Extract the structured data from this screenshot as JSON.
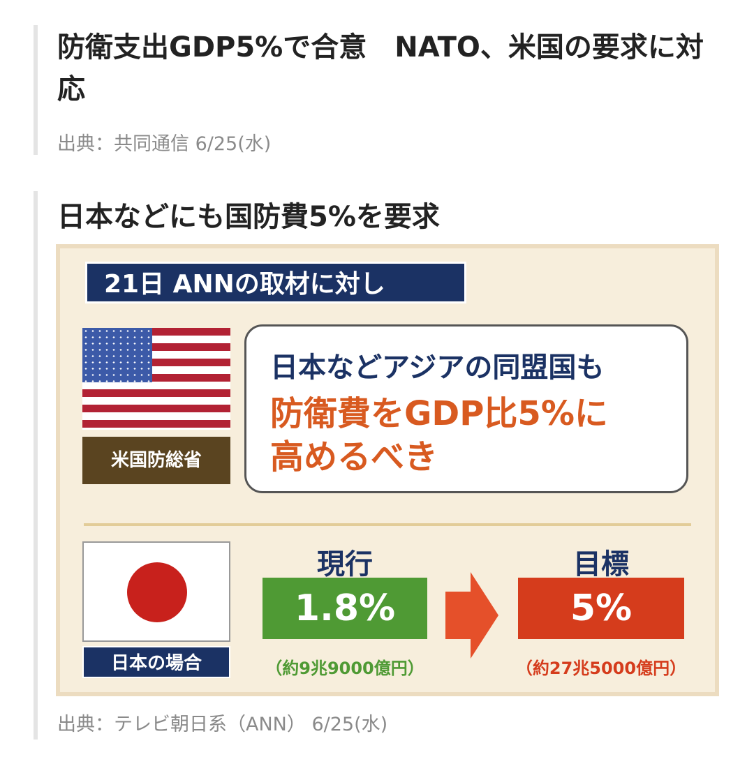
{
  "article1": {
    "title": "防衛支出GDP5%で合意　NATO、米国の要求に対応",
    "source": "出典：共同通信 6/25(水)"
  },
  "article2": {
    "title": "日本などにも国防費5%を要求",
    "source": "出典：テレビ朝日系（ANN） 6/25(水)",
    "image": {
      "banner": "21日 ANNの取材に対し",
      "us_label": "米国防総省",
      "quote_line1": "日本などアジアの同盟国も",
      "quote_line2": "防衛費をGDP比5%に",
      "quote_line3": "高めるべき",
      "jp_label": "日本の場合",
      "current_head": "現行",
      "current_value": "1.8%",
      "current_amount": "（約9兆9000億円）",
      "target_head": "目標",
      "target_value": "5%",
      "target_amount": "（約27兆5000億円）",
      "colors": {
        "navy": "#1b3264",
        "orange": "#d85a20",
        "green": "#4f9a34",
        "red": "#d53c1c",
        "brown": "#5a4420"
      }
    }
  }
}
